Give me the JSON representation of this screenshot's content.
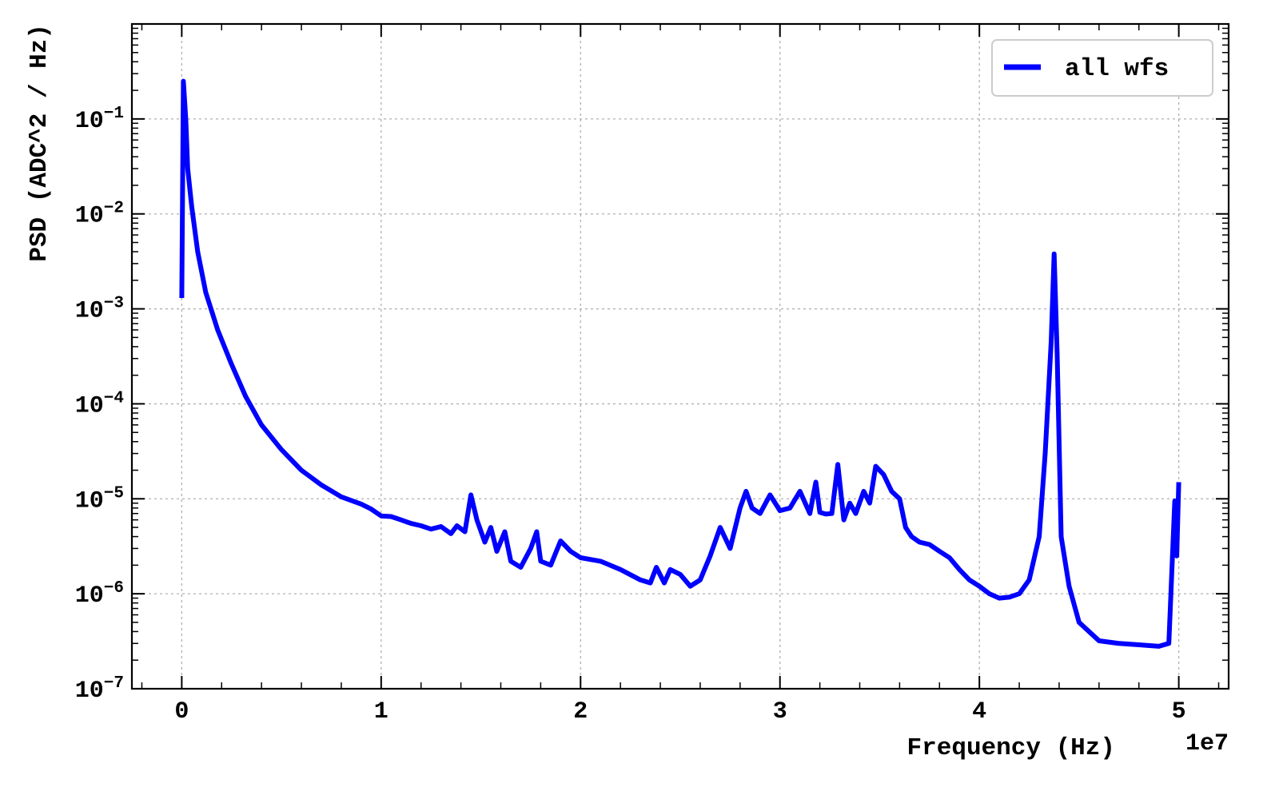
{
  "chart_data": {
    "type": "line",
    "title": "",
    "xlabel": "Frequency (Hz)",
    "ylabel": "PSD (ADC^2 / Hz)",
    "x_offset_text": "1e7",
    "x_scale": "linear",
    "y_scale": "log",
    "xlim": [
      -0.25,
      5.25
    ],
    "ylim": [
      1e-07,
      1.0
    ],
    "x_unit_multiplier": 10000000.0,
    "x_ticks": [
      0,
      1,
      2,
      3,
      4,
      5
    ],
    "x_tick_labels": [
      "0",
      "1",
      "2",
      "3",
      "4",
      "5"
    ],
    "y_ticks": [
      1e-07,
      1e-06,
      1e-05,
      0.0001,
      0.001,
      0.01,
      0.1
    ],
    "y_tick_labels": [
      {
        "base": "10",
        "exp": "−7"
      },
      {
        "base": "10",
        "exp": "−6"
      },
      {
        "base": "10",
        "exp": "−5"
      },
      {
        "base": "10",
        "exp": "−4"
      },
      {
        "base": "10",
        "exp": "−3"
      },
      {
        "base": "10",
        "exp": "−2"
      },
      {
        "base": "10",
        "exp": "−1"
      }
    ],
    "grid": true,
    "legend_position": "top-right",
    "series": [
      {
        "name": "all wfs",
        "color": "#0000ff",
        "points": [
          [
            0.0,
            0.0013
          ],
          [
            0.008,
            0.25
          ],
          [
            0.02,
            0.1
          ],
          [
            0.03,
            0.03
          ],
          [
            0.05,
            0.012
          ],
          [
            0.08,
            0.004
          ],
          [
            0.12,
            0.0015
          ],
          [
            0.18,
            0.0006
          ],
          [
            0.25,
            0.00026
          ],
          [
            0.32,
            0.00012
          ],
          [
            0.4,
            6e-05
          ],
          [
            0.5,
            3.3e-05
          ],
          [
            0.6,
            2e-05
          ],
          [
            0.7,
            1.4e-05
          ],
          [
            0.8,
            1.05e-05
          ],
          [
            0.9,
            8.8e-06
          ],
          [
            0.95,
            7.8e-06
          ],
          [
            1.0,
            6.6e-06
          ],
          [
            1.05,
            6.5e-06
          ],
          [
            1.1,
            6e-06
          ],
          [
            1.15,
            5.5e-06
          ],
          [
            1.2,
            5.2e-06
          ],
          [
            1.25,
            4.8e-06
          ],
          [
            1.3,
            5.1e-06
          ],
          [
            1.35,
            4.3e-06
          ],
          [
            1.38,
            5.2e-06
          ],
          [
            1.42,
            4.5e-06
          ],
          [
            1.45,
            1.1e-05
          ],
          [
            1.48,
            6e-06
          ],
          [
            1.52,
            3.5e-06
          ],
          [
            1.55,
            5e-06
          ],
          [
            1.58,
            2.8e-06
          ],
          [
            1.62,
            4.5e-06
          ],
          [
            1.65,
            2.2e-06
          ],
          [
            1.7,
            1.9e-06
          ],
          [
            1.75,
            3e-06
          ],
          [
            1.78,
            4.5e-06
          ],
          [
            1.8,
            2.2e-06
          ],
          [
            1.85,
            2e-06
          ],
          [
            1.9,
            3.6e-06
          ],
          [
            1.95,
            2.8e-06
          ],
          [
            2.0,
            2.4e-06
          ],
          [
            2.1,
            2.2e-06
          ],
          [
            2.2,
            1.8e-06
          ],
          [
            2.3,
            1.4e-06
          ],
          [
            2.35,
            1.3e-06
          ],
          [
            2.38,
            1.9e-06
          ],
          [
            2.42,
            1.3e-06
          ],
          [
            2.45,
            1.8e-06
          ],
          [
            2.5,
            1.6e-06
          ],
          [
            2.55,
            1.2e-06
          ],
          [
            2.6,
            1.4e-06
          ],
          [
            2.65,
            2.5e-06
          ],
          [
            2.7,
            5e-06
          ],
          [
            2.75,
            3e-06
          ],
          [
            2.8,
            8e-06
          ],
          [
            2.83,
            1.2e-05
          ],
          [
            2.86,
            8e-06
          ],
          [
            2.9,
            7e-06
          ],
          [
            2.95,
            1.1e-05
          ],
          [
            3.0,
            7.5e-06
          ],
          [
            3.05,
            8e-06
          ],
          [
            3.1,
            1.2e-05
          ],
          [
            3.15,
            7e-06
          ],
          [
            3.18,
            1.5e-05
          ],
          [
            3.2,
            7.2e-06
          ],
          [
            3.23,
            6.9e-06
          ],
          [
            3.26,
            7e-06
          ],
          [
            3.29,
            2.3e-05
          ],
          [
            3.32,
            6e-06
          ],
          [
            3.35,
            9e-06
          ],
          [
            3.38,
            7e-06
          ],
          [
            3.42,
            1.2e-05
          ],
          [
            3.45,
            9e-06
          ],
          [
            3.48,
            2.2e-05
          ],
          [
            3.52,
            1.8e-05
          ],
          [
            3.56,
            1.2e-05
          ],
          [
            3.6,
            1e-05
          ],
          [
            3.63,
            5e-06
          ],
          [
            3.66,
            4e-06
          ],
          [
            3.7,
            3.5e-06
          ],
          [
            3.75,
            3.3e-06
          ],
          [
            3.8,
            2.8e-06
          ],
          [
            3.85,
            2.4e-06
          ],
          [
            3.9,
            1.8e-06
          ],
          [
            3.95,
            1.4e-06
          ],
          [
            4.0,
            1.2e-06
          ],
          [
            4.05,
            1e-06
          ],
          [
            4.1,
            9e-07
          ],
          [
            4.15,
            9.2e-07
          ],
          [
            4.2,
            1e-06
          ],
          [
            4.25,
            1.4e-06
          ],
          [
            4.3,
            4e-06
          ],
          [
            4.33,
            3e-05
          ],
          [
            4.36,
            0.00045
          ],
          [
            4.375,
            0.0038
          ],
          [
            4.39,
            0.00033
          ],
          [
            4.41,
            4e-06
          ],
          [
            4.45,
            1.2e-06
          ],
          [
            4.5,
            5e-07
          ],
          [
            4.6,
            3.2e-07
          ],
          [
            4.7,
            3e-07
          ],
          [
            4.8,
            2.9e-07
          ],
          [
            4.9,
            2.8e-07
          ],
          [
            4.95,
            3e-07
          ],
          [
            4.98,
            9.5e-06
          ],
          [
            4.99,
            2.5e-06
          ],
          [
            5.0,
            1.5e-05
          ]
        ],
        "peaks_note_free": true
      }
    ]
  },
  "legend": {
    "label": "all wfs"
  }
}
